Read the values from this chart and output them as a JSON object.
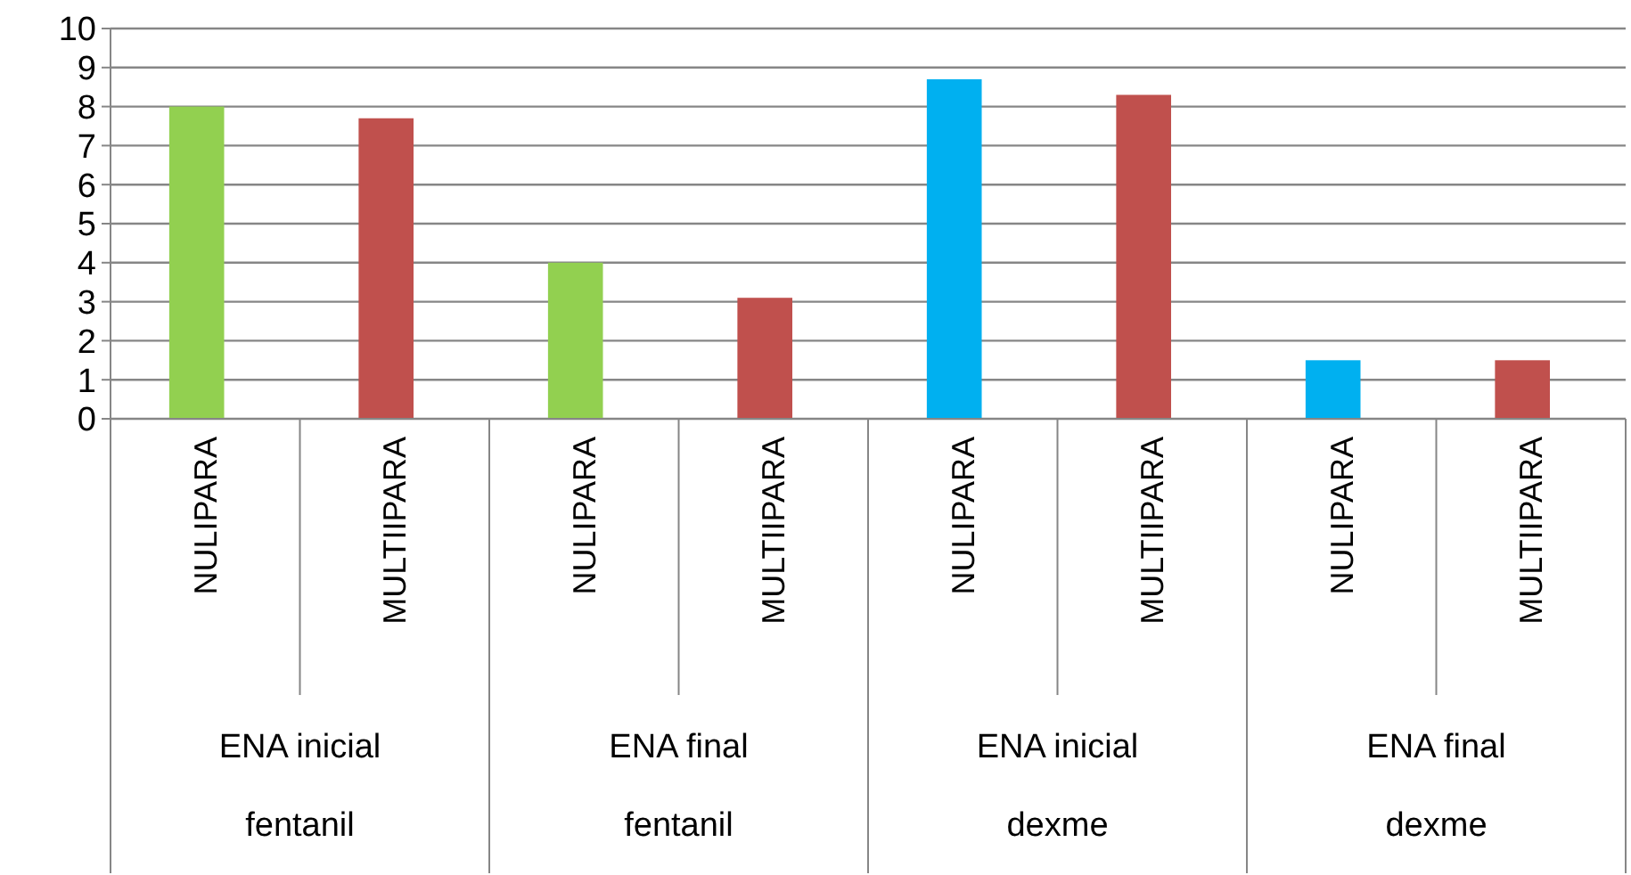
{
  "chart_data": {
    "type": "bar",
    "categories": [
      "NULIPARA",
      "MULTIIPARA",
      "NULIPARA",
      "MULTIIPARA",
      "NULIPARA",
      "MULTIIPARA",
      "NULIPARA",
      "MULTIIPARA"
    ],
    "values": [
      8.0,
      7.7,
      4.0,
      3.1,
      8.7,
      8.3,
      1.5,
      1.5
    ],
    "colors": [
      "#92d050",
      "#c0504d",
      "#92d050",
      "#c0504d",
      "#00b0f0",
      "#c0504d",
      "#00b0f0",
      "#c0504d"
    ],
    "ylim": [
      0,
      10
    ],
    "yticks": [
      0,
      1,
      2,
      3,
      4,
      5,
      6,
      7,
      8,
      9,
      10
    ],
    "grid": "y",
    "annotations": [
      "ENA inicial",
      "fentanil",
      "ENA final",
      "fentanil",
      "ENA inicial",
      "dexme",
      "ENA final",
      "dexme"
    ]
  }
}
